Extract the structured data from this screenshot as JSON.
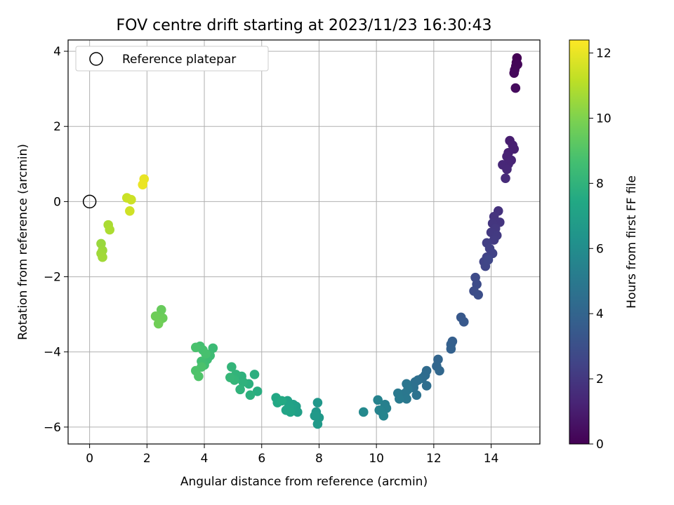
{
  "chart_data": {
    "type": "scatter",
    "title": "FOV centre drift starting at 2023/11/23 16:30:43",
    "xlabel": "Angular distance from reference (arcmin)",
    "ylabel": "Rotation from reference (arcmin)",
    "xlim": [
      -0.75,
      15.7
    ],
    "ylim": [
      -6.45,
      4.3
    ],
    "xticks": [
      0,
      2,
      4,
      6,
      8,
      10,
      12,
      14
    ],
    "yticks": [
      -6,
      -4,
      -2,
      0,
      2,
      4
    ],
    "xtick_labels": [
      "0",
      "2",
      "4",
      "6",
      "8",
      "10",
      "12",
      "14"
    ],
    "ytick_labels": [
      "−6",
      "−4",
      "−2",
      "0",
      "2",
      "4"
    ],
    "grid": true,
    "legend": {
      "placement": "upper-left",
      "entries": [
        "Reference platepar"
      ]
    },
    "reference_point": {
      "label": "Reference platepar",
      "x": 0,
      "y": 0
    },
    "colorbar": {
      "label": "Hours from first FF file",
      "colormap": "viridis",
      "range": [
        0,
        12.4
      ],
      "ticks": [
        0,
        2,
        4,
        6,
        8,
        10,
        12
      ],
      "tick_labels": [
        "0",
        "2",
        "4",
        "6",
        "8",
        "10",
        "12"
      ]
    },
    "series": [
      {
        "points": [
          [
            14.9,
            3.82,
            0.0
          ],
          [
            14.88,
            3.7,
            0.05
          ],
          [
            14.86,
            3.6,
            0.1
          ],
          [
            14.92,
            3.65,
            0.15
          ],
          [
            14.82,
            3.5,
            0.2
          ],
          [
            14.8,
            3.42,
            0.25
          ],
          [
            14.85,
            3.02,
            0.35
          ],
          [
            14.65,
            1.62,
            1.0
          ],
          [
            14.75,
            1.5,
            1.05
          ],
          [
            14.8,
            1.4,
            1.1
          ],
          [
            14.6,
            1.3,
            1.15
          ],
          [
            14.55,
            1.2,
            1.2
          ],
          [
            14.7,
            1.1,
            1.25
          ],
          [
            14.6,
            1.0,
            1.3
          ],
          [
            14.4,
            0.98,
            1.35
          ],
          [
            14.55,
            0.86,
            1.4
          ],
          [
            14.5,
            0.62,
            1.5
          ],
          [
            14.25,
            -0.25,
            1.8
          ],
          [
            14.1,
            -0.4,
            1.85
          ],
          [
            14.3,
            -0.55,
            1.9
          ],
          [
            14.05,
            -0.58,
            1.95
          ],
          [
            14.15,
            -0.72,
            2.0
          ],
          [
            14.0,
            -0.82,
            2.05
          ],
          [
            14.2,
            -0.9,
            2.1
          ],
          [
            14.1,
            -1.02,
            2.15
          ],
          [
            13.85,
            -1.1,
            2.3
          ],
          [
            13.95,
            -1.25,
            2.35
          ],
          [
            14.05,
            -1.38,
            2.4
          ],
          [
            13.85,
            -1.48,
            2.45
          ],
          [
            13.75,
            -1.6,
            2.5
          ],
          [
            13.8,
            -1.72,
            2.55
          ],
          [
            13.9,
            -1.55,
            2.6
          ],
          [
            13.45,
            -2.02,
            2.8
          ],
          [
            13.5,
            -2.2,
            2.85
          ],
          [
            13.4,
            -2.38,
            2.9
          ],
          [
            13.55,
            -2.48,
            2.95
          ],
          [
            12.95,
            -3.08,
            3.4
          ],
          [
            13.05,
            -3.2,
            3.45
          ],
          [
            12.65,
            -3.72,
            3.7
          ],
          [
            12.6,
            -3.8,
            3.75
          ],
          [
            12.6,
            -3.92,
            3.8
          ],
          [
            12.15,
            -4.2,
            4.0
          ],
          [
            12.1,
            -4.38,
            4.05
          ],
          [
            12.2,
            -4.5,
            4.1
          ],
          [
            11.75,
            -4.5,
            4.3
          ],
          [
            11.7,
            -4.62,
            4.35
          ],
          [
            11.6,
            -4.7,
            4.4
          ],
          [
            11.75,
            -4.9,
            4.45
          ],
          [
            11.45,
            -4.75,
            4.5
          ],
          [
            11.35,
            -4.8,
            4.55
          ],
          [
            11.3,
            -4.95,
            4.6
          ],
          [
            11.4,
            -5.15,
            4.65
          ],
          [
            11.05,
            -4.85,
            4.8
          ],
          [
            11.1,
            -5.0,
            4.85
          ],
          [
            11.0,
            -5.1,
            4.9
          ],
          [
            11.05,
            -5.25,
            4.95
          ],
          [
            10.75,
            -5.1,
            5.0
          ],
          [
            10.8,
            -5.25,
            5.05
          ],
          [
            10.3,
            -5.4,
            5.3
          ],
          [
            10.35,
            -5.5,
            5.35
          ],
          [
            10.2,
            -5.6,
            5.4
          ],
          [
            10.05,
            -5.28,
            5.45
          ],
          [
            10.1,
            -5.55,
            5.5
          ],
          [
            10.25,
            -5.7,
            5.55
          ],
          [
            9.55,
            -5.6,
            5.8
          ],
          [
            7.95,
            -5.35,
            6.5
          ],
          [
            7.9,
            -5.6,
            6.55
          ],
          [
            8.0,
            -5.75,
            6.6
          ],
          [
            7.85,
            -5.7,
            6.65
          ],
          [
            7.95,
            -5.92,
            6.7
          ],
          [
            7.2,
            -5.45,
            6.9
          ],
          [
            7.25,
            -5.6,
            6.95
          ],
          [
            7.1,
            -5.4,
            7.0
          ],
          [
            7.05,
            -5.5,
            7.05
          ],
          [
            6.9,
            -5.3,
            7.1
          ],
          [
            6.95,
            -5.45,
            7.15
          ],
          [
            6.85,
            -5.55,
            7.2
          ],
          [
            7.0,
            -5.6,
            7.25
          ],
          [
            6.5,
            -5.22,
            7.4
          ],
          [
            6.55,
            -5.35,
            7.45
          ],
          [
            6.7,
            -5.3,
            7.5
          ],
          [
            5.85,
            -5.05,
            7.7
          ],
          [
            5.75,
            -4.6,
            7.75
          ],
          [
            5.55,
            -4.85,
            7.8
          ],
          [
            5.6,
            -5.15,
            7.85
          ],
          [
            5.3,
            -4.65,
            7.9
          ],
          [
            5.35,
            -4.8,
            7.95
          ],
          [
            5.25,
            -5.0,
            8.0
          ],
          [
            5.1,
            -4.6,
            8.05
          ],
          [
            4.95,
            -4.4,
            8.1
          ],
          [
            5.05,
            -4.75,
            8.15
          ],
          [
            4.9,
            -4.68,
            8.2
          ],
          [
            4.3,
            -3.9,
            8.4
          ],
          [
            4.2,
            -4.1,
            8.45
          ],
          [
            4.1,
            -4.2,
            8.5
          ],
          [
            4.0,
            -4.35,
            8.55
          ],
          [
            3.9,
            -4.25,
            8.6
          ],
          [
            3.85,
            -3.85,
            8.65
          ],
          [
            3.95,
            -3.95,
            8.7
          ],
          [
            4.05,
            -4.05,
            8.75
          ],
          [
            3.7,
            -3.88,
            8.8
          ],
          [
            3.9,
            -4.4,
            8.85
          ],
          [
            3.7,
            -4.5,
            8.9
          ],
          [
            3.8,
            -4.65,
            8.95
          ],
          [
            2.5,
            -2.88,
            9.5
          ],
          [
            2.55,
            -3.1,
            9.55
          ],
          [
            2.45,
            -3.15,
            9.6
          ],
          [
            2.3,
            -3.05,
            9.65
          ],
          [
            2.4,
            -3.25,
            9.7
          ],
          [
            0.4,
            -1.12,
            10.5
          ],
          [
            0.45,
            -1.3,
            10.55
          ],
          [
            0.4,
            -1.38,
            10.6
          ],
          [
            0.45,
            -1.48,
            10.65
          ],
          [
            0.65,
            -0.62,
            10.8
          ],
          [
            0.7,
            -0.75,
            10.85
          ],
          [
            1.3,
            0.1,
            11.4
          ],
          [
            1.45,
            0.05,
            11.45
          ],
          [
            1.4,
            -0.25,
            11.5
          ],
          [
            1.9,
            0.6,
            12.0
          ],
          [
            1.85,
            0.45,
            12.05
          ]
        ]
      }
    ]
  }
}
